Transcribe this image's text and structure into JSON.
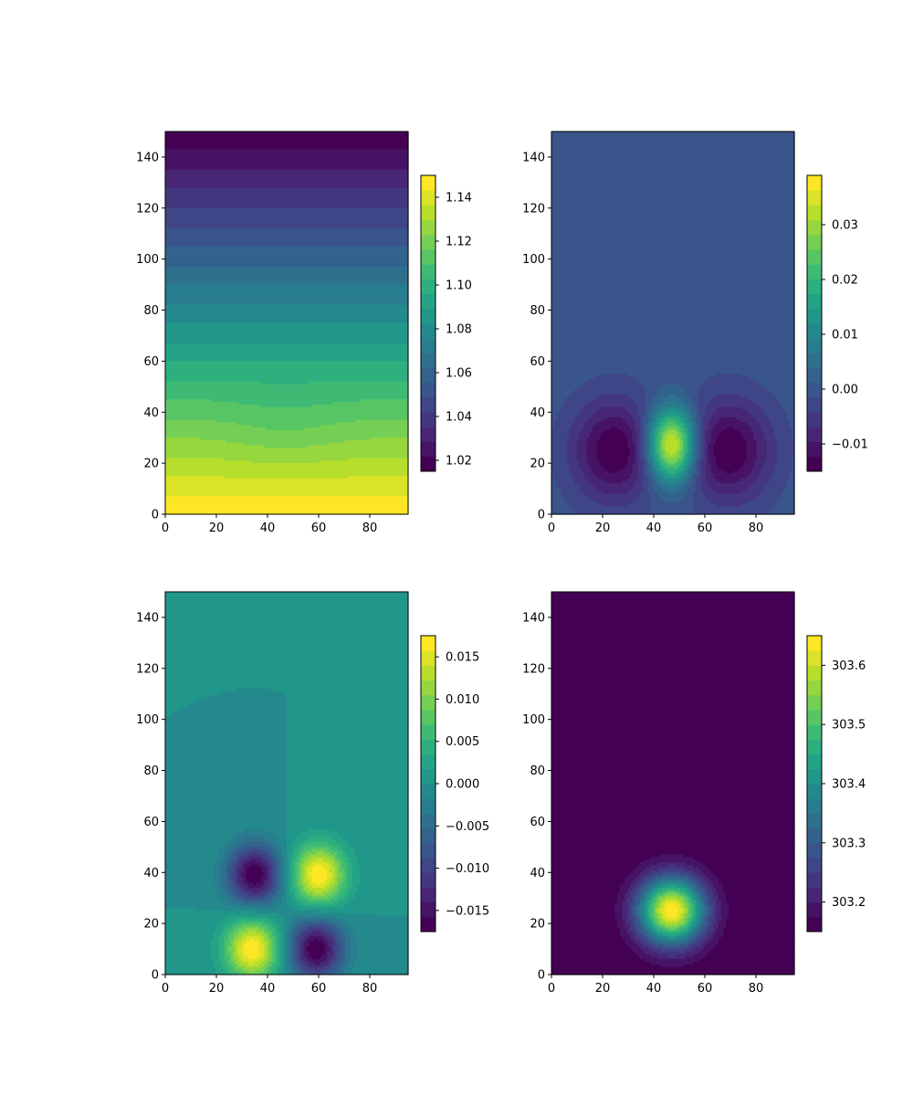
{
  "chart_data": [
    {
      "type": "heatmap",
      "subtype": "filled-contour",
      "field": "stratified-layers",
      "title": "",
      "xlabel": "",
      "ylabel": "",
      "xlim": [
        0,
        95
      ],
      "ylim": [
        0,
        150
      ],
      "x_ticks": [
        0,
        20,
        40,
        60,
        80
      ],
      "y_ticks": [
        0,
        20,
        40,
        60,
        80,
        100,
        120,
        140
      ],
      "colormap": "viridis",
      "levels": 20,
      "value_range": [
        1.015,
        1.15
      ],
      "colorbar_ticks": [
        "1.02",
        "1.04",
        "1.06",
        "1.08",
        "1.10",
        "1.12",
        "1.14"
      ],
      "colorbar_tick_values": [
        1.02,
        1.04,
        1.06,
        1.08,
        1.1,
        1.12,
        1.14
      ],
      "features": [
        {
          "kind": "vertical-gradient",
          "top_value": 1.015,
          "bottom_value": 1.15
        },
        {
          "kind": "dip",
          "x": 47,
          "y": 32,
          "amplitude": -0.004
        }
      ]
    },
    {
      "type": "heatmap",
      "subtype": "filled-contour",
      "field": "gaussian-sum",
      "title": "",
      "xlabel": "",
      "ylabel": "",
      "xlim": [
        0,
        95
      ],
      "ylim": [
        0,
        150
      ],
      "x_ticks": [
        0,
        20,
        40,
        60,
        80
      ],
      "y_ticks": [
        0,
        20,
        40,
        60,
        80,
        100,
        120,
        140
      ],
      "colormap": "viridis",
      "levels": 20,
      "value_range": [
        -0.015,
        0.039
      ],
      "colorbar_ticks": [
        "−0.01",
        "0.00",
        "0.01",
        "0.02",
        "0.03"
      ],
      "colorbar_tick_values": [
        -0.01,
        0.0,
        0.01,
        0.02,
        0.03
      ],
      "features": [
        {
          "kind": "peak",
          "x": 47,
          "y": 27,
          "amplitude": 0.039
        },
        {
          "kind": "trough",
          "x": 25,
          "y": 25,
          "amplitude": -0.015
        },
        {
          "kind": "trough",
          "x": 69,
          "y": 25,
          "amplitude": -0.015
        }
      ]
    },
    {
      "type": "heatmap",
      "subtype": "filled-contour",
      "field": "gaussian-sum",
      "title": "",
      "xlabel": "",
      "ylabel": "",
      "xlim": [
        0,
        95
      ],
      "ylim": [
        0,
        150
      ],
      "x_ticks": [
        0,
        20,
        40,
        60,
        80
      ],
      "y_ticks": [
        0,
        20,
        40,
        60,
        80,
        100,
        120,
        140
      ],
      "colormap": "viridis",
      "levels": 20,
      "value_range": [
        -0.0175,
        0.0175
      ],
      "colorbar_ticks": [
        "−0.015",
        "−0.010",
        "−0.005",
        "0.000",
        "0.005",
        "0.010",
        "0.015"
      ],
      "colorbar_tick_values": [
        -0.015,
        -0.01,
        -0.005,
        0.0,
        0.005,
        0.01,
        0.015
      ],
      "features": [
        {
          "kind": "trough",
          "x": 35,
          "y": 39,
          "amplitude": -0.0175
        },
        {
          "kind": "peak",
          "x": 60,
          "y": 39,
          "amplitude": 0.0175
        },
        {
          "kind": "peak",
          "x": 34,
          "y": 10,
          "amplitude": 0.0175
        },
        {
          "kind": "trough",
          "x": 59,
          "y": 10,
          "amplitude": -0.0175
        }
      ]
    },
    {
      "type": "heatmap",
      "subtype": "filled-contour",
      "field": "gaussian-sum",
      "title": "",
      "xlabel": "",
      "ylabel": "",
      "xlim": [
        0,
        95
      ],
      "ylim": [
        0,
        150
      ],
      "x_ticks": [
        0,
        20,
        40,
        60,
        80
      ],
      "y_ticks": [
        0,
        20,
        40,
        60,
        80,
        100,
        120,
        140
      ],
      "colormap": "viridis",
      "levels": 20,
      "value_range": [
        303.15,
        303.65
      ],
      "colorbar_ticks": [
        "303.2",
        "303.3",
        "303.4",
        "303.5",
        "303.6"
      ],
      "colorbar_tick_values": [
        303.2,
        303.3,
        303.4,
        303.5,
        303.6
      ],
      "features": [
        {
          "kind": "background",
          "value": 303.15
        },
        {
          "kind": "peak",
          "x": 47,
          "y": 25,
          "amplitude": 0.5
        }
      ]
    }
  ]
}
